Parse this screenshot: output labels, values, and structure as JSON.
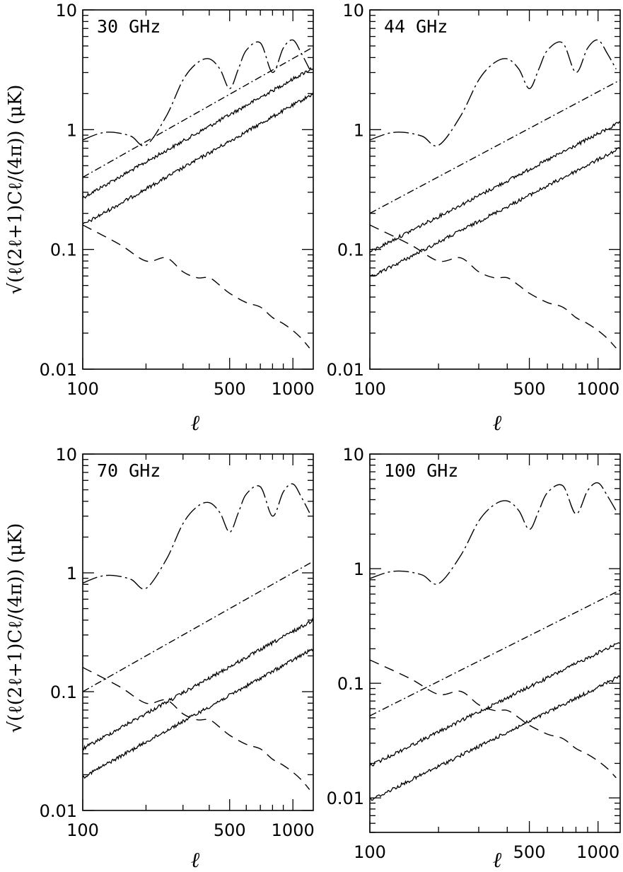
{
  "figure": {
    "ylabel": "√(ℓ(2ℓ+1)Cℓ/(4π)) (μK)",
    "xlabel": "ℓ"
  },
  "chart_data": [
    {
      "type": "line",
      "title": "30 GHz",
      "xscale": "log",
      "yscale": "log",
      "xlim": [
        100,
        1250
      ],
      "ylim": [
        0.01,
        10
      ],
      "xticks": [
        100,
        500,
        1000
      ],
      "xtick_labels": [
        "100",
        "500",
        "1000"
      ],
      "yticks": [
        0.01,
        0.1,
        1,
        10
      ],
      "ytick_labels": [
        "0.01",
        "0.1",
        "1",
        "10"
      ],
      "series": [
        {
          "style": "dash-dot-long",
          "x": [
            100,
            120,
            140,
            170,
            200,
            250,
            300,
            350,
            400,
            450,
            500,
            550,
            600,
            700,
            800,
            900,
            1000,
            1100,
            1200
          ],
          "y": [
            0.82,
            0.93,
            0.95,
            0.88,
            0.74,
            1.3,
            2.6,
            3.6,
            3.9,
            3.2,
            2.2,
            3.2,
            4.6,
            5.3,
            3.0,
            4.8,
            5.6,
            4.3,
            3.2
          ]
        },
        {
          "style": "dash-dot",
          "x": [
            100,
            1250
          ],
          "y": [
            0.4,
            4.9
          ]
        },
        {
          "style": "solid-noisy",
          "x": [
            100,
            1250
          ],
          "y": [
            0.27,
            3.3
          ]
        },
        {
          "style": "solid-noisy",
          "x": [
            100,
            1250
          ],
          "y": [
            0.16,
            2.0
          ]
        },
        {
          "style": "dashed",
          "x": [
            100,
            150,
            200,
            250,
            300,
            350,
            400,
            450,
            500,
            600,
            700,
            800,
            900,
            1000,
            1100,
            1200
          ],
          "y": [
            0.16,
            0.11,
            0.08,
            0.085,
            0.065,
            0.058,
            0.058,
            0.05,
            0.043,
            0.036,
            0.033,
            0.027,
            0.024,
            0.021,
            0.018,
            0.015
          ]
        }
      ]
    },
    {
      "type": "line",
      "title": "44 GHz",
      "xscale": "log",
      "yscale": "log",
      "xlim": [
        100,
        1250
      ],
      "ylim": [
        0.01,
        10
      ],
      "xticks": [
        100,
        500,
        1000
      ],
      "xtick_labels": [
        "100",
        "500",
        "1000"
      ],
      "yticks": [
        0.01,
        0.1,
        1,
        10
      ],
      "ytick_labels": [
        "0.01",
        "0.1",
        "1",
        "10"
      ],
      "series": [
        {
          "style": "dash-dot-long",
          "x": [
            100,
            120,
            140,
            170,
            200,
            250,
            300,
            350,
            400,
            450,
            500,
            550,
            600,
            700,
            800,
            900,
            1000,
            1100,
            1200
          ],
          "y": [
            0.82,
            0.93,
            0.95,
            0.88,
            0.74,
            1.3,
            2.6,
            3.6,
            3.9,
            3.2,
            2.2,
            3.2,
            4.6,
            5.3,
            3.0,
            4.8,
            5.6,
            4.3,
            3.2
          ]
        },
        {
          "style": "dash-dot",
          "x": [
            100,
            1250
          ],
          "y": [
            0.2,
            2.6
          ]
        },
        {
          "style": "solid-noisy",
          "x": [
            100,
            1250
          ],
          "y": [
            0.095,
            1.15
          ]
        },
        {
          "style": "solid-noisy",
          "x": [
            100,
            1250
          ],
          "y": [
            0.058,
            0.7
          ]
        },
        {
          "style": "dashed",
          "x": [
            100,
            150,
            200,
            250,
            300,
            350,
            400,
            450,
            500,
            600,
            700,
            800,
            900,
            1000,
            1100,
            1200
          ],
          "y": [
            0.16,
            0.11,
            0.08,
            0.085,
            0.065,
            0.058,
            0.058,
            0.05,
            0.043,
            0.036,
            0.033,
            0.027,
            0.024,
            0.021,
            0.018,
            0.015
          ]
        }
      ]
    },
    {
      "type": "line",
      "title": "70 GHz",
      "xscale": "log",
      "yscale": "log",
      "xlim": [
        100,
        1250
      ],
      "ylim": [
        0.01,
        10
      ],
      "xticks": [
        100,
        500,
        1000
      ],
      "xtick_labels": [
        "100",
        "500",
        "1000"
      ],
      "yticks": [
        0.01,
        0.1,
        1,
        10
      ],
      "ytick_labels": [
        "0.01",
        "0.1",
        "1",
        "10"
      ],
      "series": [
        {
          "style": "dash-dot-long",
          "x": [
            100,
            120,
            140,
            170,
            200,
            250,
            300,
            350,
            400,
            450,
            500,
            550,
            600,
            700,
            800,
            900,
            1000,
            1100,
            1200
          ],
          "y": [
            0.82,
            0.93,
            0.95,
            0.88,
            0.74,
            1.3,
            2.6,
            3.6,
            3.9,
            3.2,
            2.2,
            3.2,
            4.6,
            5.3,
            3.0,
            4.8,
            5.6,
            4.3,
            3.2
          ]
        },
        {
          "style": "dash-dot",
          "x": [
            100,
            1250
          ],
          "y": [
            0.1,
            1.25
          ]
        },
        {
          "style": "solid-noisy",
          "x": [
            100,
            1250
          ],
          "y": [
            0.033,
            0.4
          ]
        },
        {
          "style": "solid-noisy",
          "x": [
            100,
            1250
          ],
          "y": [
            0.019,
            0.23
          ]
        },
        {
          "style": "dashed",
          "x": [
            100,
            150,
            200,
            250,
            300,
            350,
            400,
            450,
            500,
            600,
            700,
            800,
            900,
            1000,
            1100,
            1200
          ],
          "y": [
            0.16,
            0.11,
            0.08,
            0.085,
            0.065,
            0.058,
            0.058,
            0.05,
            0.043,
            0.036,
            0.033,
            0.027,
            0.024,
            0.021,
            0.018,
            0.015
          ]
        }
      ]
    },
    {
      "type": "line",
      "title": "100 GHz",
      "xscale": "log",
      "yscale": "log",
      "xlim": [
        100,
        1250
      ],
      "ylim": [
        0.005,
        10
      ],
      "xticks": [
        100,
        500,
        1000
      ],
      "xtick_labels": [
        "100",
        "500",
        "1000"
      ],
      "yticks": [
        0.01,
        0.1,
        1,
        10
      ],
      "ytick_labels": [
        "0.01",
        "0.1",
        "1",
        "10"
      ],
      "series": [
        {
          "style": "dash-dot-long",
          "x": [
            100,
            120,
            140,
            170,
            200,
            250,
            300,
            350,
            400,
            450,
            500,
            550,
            600,
            700,
            800,
            900,
            1000,
            1100,
            1200
          ],
          "y": [
            0.82,
            0.93,
            0.95,
            0.88,
            0.74,
            1.3,
            2.6,
            3.6,
            3.9,
            3.2,
            2.2,
            3.2,
            4.6,
            5.3,
            3.0,
            4.8,
            5.6,
            4.3,
            3.2
          ]
        },
        {
          "style": "dash-dot",
          "x": [
            100,
            1250
          ],
          "y": [
            0.052,
            0.65
          ]
        },
        {
          "style": "solid-noisy",
          "x": [
            100,
            1250
          ],
          "y": [
            0.019,
            0.23
          ]
        },
        {
          "style": "solid-noisy",
          "x": [
            100,
            1250
          ],
          "y": [
            0.0095,
            0.115
          ]
        },
        {
          "style": "dashed",
          "x": [
            100,
            150,
            200,
            250,
            300,
            350,
            400,
            450,
            500,
            600,
            700,
            800,
            900,
            1000,
            1100,
            1200
          ],
          "y": [
            0.16,
            0.11,
            0.08,
            0.085,
            0.065,
            0.058,
            0.058,
            0.05,
            0.043,
            0.036,
            0.033,
            0.027,
            0.024,
            0.021,
            0.018,
            0.015
          ]
        }
      ]
    }
  ]
}
